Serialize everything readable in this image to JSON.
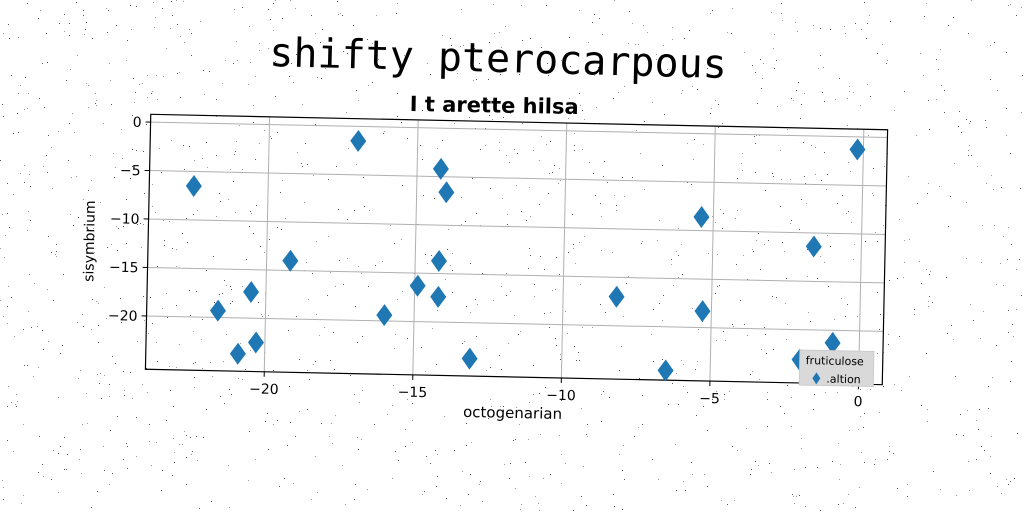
{
  "chart_data": {
    "type": "scatter",
    "suptitle": "shifty pterocarpous",
    "title": "I t arette hilsa",
    "xlabel": "octogenarian",
    "ylabel": "sisymbrium",
    "xlim": [
      -24,
      0.8
    ],
    "ylim": [
      -25.5,
      0.8
    ],
    "xticks": [
      -20,
      -15,
      -10,
      -5,
      0
    ],
    "yticks": [
      0,
      -5,
      -10,
      -15,
      -20
    ],
    "xtick_labels": [
      "−20",
      "−15",
      "−10",
      "−5",
      "0"
    ],
    "ytick_labels": [
      "0",
      "−5",
      "−10",
      "−15",
      "−20"
    ],
    "grid": true,
    "legend": {
      "title": "fruticulose",
      "placement": "lower-right",
      "entries": [
        ".altion"
      ]
    },
    "marker": "thin-diamond",
    "color": "#1f77b4",
    "series": [
      {
        "name": ".altion",
        "points": [
          [
            -22.5,
            -6.5
          ],
          [
            -21.6,
            -19.3
          ],
          [
            -20.5,
            -17.3
          ],
          [
            -20.9,
            -23.7
          ],
          [
            -20.3,
            -22.5
          ],
          [
            -19.2,
            -14.0
          ],
          [
            -17.0,
            -1.5
          ],
          [
            -16.0,
            -19.4
          ],
          [
            -14.9,
            -16.3
          ],
          [
            -14.2,
            -4.2
          ],
          [
            -14.0,
            -6.6
          ],
          [
            -14.2,
            -13.7
          ],
          [
            -14.2,
            -17.4
          ],
          [
            -13.1,
            -23.7
          ],
          [
            -8.2,
            -17.0
          ],
          [
            -6.5,
            -24.5
          ],
          [
            -5.4,
            -8.6
          ],
          [
            -5.3,
            -18.3
          ],
          [
            -1.6,
            -11.4
          ],
          [
            -2.0,
            -23.1
          ],
          [
            -0.9,
            -21.3
          ],
          [
            -0.2,
            -1.3
          ]
        ]
      }
    ]
  }
}
